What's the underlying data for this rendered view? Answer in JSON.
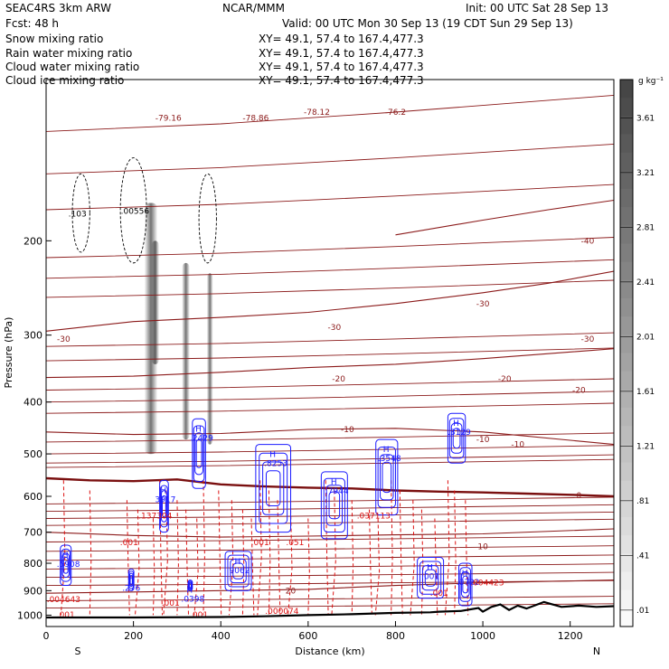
{
  "header": {
    "run": "SEAC4RS   3km ARW",
    "org": "NCAR/MMM",
    "init": "Init: 00 UTC Sat 28 Sep 13",
    "fcst": "Fcst:    48 h",
    "valid": "Valid: 00 UTC Mon 30 Sep 13 (19 CDT Sun 29 Sep 13)"
  },
  "fields": [
    {
      "name": "Snow mixing ratio",
      "xy": "XY=  49.1, 57.4 to 167.4,477.3",
      "color": "#000000"
    },
    {
      "name": "Rain water mixing ratio",
      "xy": "XY=  49.1, 57.4 to 167.4,477.3",
      "color": "#cc0000"
    },
    {
      "name": "Cloud water mixing ratio",
      "xy": "XY=  49.1, 57.4 to 167.4,477.3",
      "color": "#1a1aff"
    },
    {
      "name": "Cloud ice mixing ratio",
      "xy": "XY=  49.1, 57.4 to 167.4,477.3",
      "color": "#000000"
    }
  ],
  "colors": {
    "temperature": "#8b1a1a",
    "freezing_line": "#7a0f0f",
    "rain": "#dd1111",
    "cloud_water": "#1a1aff",
    "ice": "#000000",
    "terrain": "#000000"
  },
  "chart_data": {
    "type": "cross-section",
    "xlabel": "Distance (km)",
    "ylabel": "Pressure (hPa)",
    "xlim": [
      0,
      1300
    ],
    "ylim": [
      1050,
      100
    ],
    "y_scale": "log",
    "x_ticks": [
      0,
      200,
      400,
      600,
      800,
      1000,
      1200
    ],
    "y_ticks": [
      200,
      300,
      400,
      500,
      600,
      700,
      800,
      900,
      1000
    ],
    "end_labels": {
      "left": "S",
      "right": "N"
    },
    "colorbar": {
      "unit": "g kg⁻¹",
      "labels": [
        "3.61",
        "3.21",
        "2.81",
        "2.41",
        "2.01",
        "1.61",
        "1.21",
        ".81",
        ".41",
        ".01"
      ]
    },
    "temperature_contours": [
      {
        "value": "-40",
        "pts": [
          [
            800,
            195
          ],
          [
            1000,
            183
          ],
          [
            1150,
            175
          ],
          [
            1300,
            168
          ]
        ],
        "labels": [
          {
            "x": 1240,
            "p": 200,
            "t": "-40"
          }
        ]
      },
      {
        "value": "-30",
        "pts": [
          [
            0,
            295
          ],
          [
            200,
            283
          ],
          [
            400,
            278
          ],
          [
            600,
            272
          ],
          [
            800,
            262
          ],
          [
            1000,
            250
          ],
          [
            1150,
            240
          ],
          [
            1300,
            228
          ]
        ],
        "labels": [
          {
            "x": 40,
            "p": 305,
            "t": "-30"
          },
          {
            "x": 660,
            "p": 290,
            "t": "-30"
          },
          {
            "x": 1000,
            "p": 262,
            "t": "-30"
          },
          {
            "x": 1240,
            "p": 305,
            "t": "-30"
          }
        ]
      },
      {
        "value": "-20",
        "pts": [
          [
            0,
            360
          ],
          [
            200,
            358
          ],
          [
            400,
            352
          ],
          [
            600,
            345
          ],
          [
            800,
            340
          ],
          [
            1000,
            332
          ],
          [
            1300,
            318
          ]
        ],
        "labels": [
          {
            "x": 670,
            "p": 362,
            "t": "-20"
          },
          {
            "x": 1050,
            "p": 362,
            "t": "-20"
          },
          {
            "x": 1220,
            "p": 380,
            "t": "-20"
          }
        ]
      },
      {
        "value": "-10",
        "pts": [
          [
            0,
            455
          ],
          [
            200,
            460
          ],
          [
            400,
            458
          ],
          [
            600,
            450
          ],
          [
            800,
            448
          ],
          [
            1000,
            455
          ],
          [
            1300,
            480
          ]
        ],
        "labels": [
          {
            "x": 690,
            "p": 450,
            "t": "-10"
          },
          {
            "x": 1000,
            "p": 470,
            "t": "-10"
          },
          {
            "x": 1080,
            "p": 480,
            "t": "-10"
          }
        ]
      },
      {
        "value": "0",
        "pts": [
          [
            0,
            555
          ],
          [
            100,
            560
          ],
          [
            200,
            562
          ],
          [
            300,
            558
          ],
          [
            400,
            570
          ],
          [
            500,
            575
          ],
          [
            600,
            578
          ],
          [
            700,
            580
          ],
          [
            800,
            585
          ],
          [
            900,
            588
          ],
          [
            1000,
            590
          ],
          [
            1100,
            593
          ],
          [
            1200,
            596
          ],
          [
            1300,
            600
          ]
        ],
        "labels": [
          {
            "x": 1220,
            "p": 598,
            "t": "0"
          }
        ]
      },
      {
        "value": "10",
        "pts": [
          [
            0,
            700
          ],
          [
            200,
            710
          ],
          [
            400,
            715
          ],
          [
            600,
            712
          ],
          [
            800,
            708
          ],
          [
            1000,
            705
          ],
          [
            1300,
            690
          ]
        ],
        "labels": [
          {
            "x": 1000,
            "p": 745,
            "t": "10"
          }
        ]
      },
      {
        "value": "20",
        "pts": [
          [
            0,
            910
          ],
          [
            200,
            905
          ],
          [
            400,
            900
          ],
          [
            600,
            895
          ],
          [
            800,
            880
          ],
          [
            1000,
            870
          ],
          [
            1300,
            860
          ]
        ],
        "labels": [
          {
            "x": 560,
            "p": 900,
            "t": "20"
          }
        ]
      }
    ],
    "theta_lines_top": [
      {
        "value": "-79.16",
        "x": 280,
        "p": 118
      },
      {
        "value": "-78.86",
        "x": 480,
        "p": 118
      },
      {
        "value": "-78.12",
        "x": 620,
        "p": 115
      },
      {
        "value": "-76.2",
        "x": 800,
        "p": 115
      }
    ],
    "snow_shading": [
      {
        "x": 240,
        "p_top": 170,
        "p_bot": 500,
        "w": 30
      },
      {
        "x": 250,
        "p_top": 200,
        "p_bot": 340,
        "w": 18
      },
      {
        "x": 320,
        "p_top": 220,
        "p_bot": 470,
        "w": 18
      },
      {
        "x": 375,
        "p_top": 230,
        "p_bot": 480,
        "w": 14
      }
    ],
    "cloud_water_cells": [
      {
        "x": 45,
        "p1": 740,
        "p2": 880,
        "w": 25,
        "label": ".5908"
      },
      {
        "x": 195,
        "p1": 820,
        "p2": 900,
        "w": 12,
        "label": ".276"
      },
      {
        "x": 270,
        "p1": 560,
        "p2": 700,
        "w": 20,
        "label": "3917"
      },
      {
        "x": 350,
        "p1": 430,
        "p2": 580,
        "w": 30,
        "label": ".2429"
      },
      {
        "x": 440,
        "p1": 760,
        "p2": 900,
        "w": 60,
        "label": "9062"
      },
      {
        "x": 520,
        "p1": 480,
        "p2": 700,
        "w": 80,
        "label": ".8253"
      },
      {
        "x": 660,
        "p1": 540,
        "p2": 720,
        "w": 60,
        "label": ".7944"
      },
      {
        "x": 780,
        "p1": 470,
        "p2": 650,
        "w": 50,
        "label": ".3548"
      },
      {
        "x": 940,
        "p1": 420,
        "p2": 520,
        "w": 40,
        "label": ".3129"
      },
      {
        "x": 880,
        "p1": 780,
        "p2": 930,
        "w": 60,
        "label": ".001"
      },
      {
        "x": 960,
        "p1": 800,
        "p2": 960,
        "w": 30,
        "label": ".0722"
      },
      {
        "x": 330,
        "p1": 860,
        "p2": 900,
        "w": 10,
        "label": ".0398"
      }
    ],
    "rain_lines_x": [
      40,
      100,
      185,
      210,
      245,
      260,
      275,
      300,
      320,
      345,
      360,
      395,
      425,
      450,
      470,
      490,
      510,
      530,
      560,
      600,
      640,
      660,
      700,
      740,
      760,
      790,
      810,
      840,
      860,
      890,
      920,
      935,
      960
    ],
    "annotations_red": [
      {
        "x": 250,
        "p": 660,
        "t": ".137304"
      },
      {
        "x": 190,
        "p": 740,
        "t": ".001"
      },
      {
        "x": 285,
        "p": 960,
        "t": ".001"
      },
      {
        "x": 350,
        "p": 1010,
        "t": ".001"
      },
      {
        "x": 45,
        "p": 1010,
        "t": ".001"
      },
      {
        "x": 40,
        "p": 945,
        "t": ".004643"
      },
      {
        "x": 750,
        "p": 660,
        "t": ".037113"
      },
      {
        "x": 540,
        "p": 995,
        "t": ".000074"
      },
      {
        "x": 490,
        "p": 740,
        "t": ".001"
      },
      {
        "x": 570,
        "p": 740,
        "t": ".051"
      },
      {
        "x": 900,
        "p": 920,
        "t": ".001"
      },
      {
        "x": 1010,
        "p": 880,
        "t": ".004423"
      }
    ],
    "terrain": [
      [
        0,
        1010
      ],
      [
        200,
        1010
      ],
      [
        400,
        1008
      ],
      [
        500,
        1005
      ],
      [
        600,
        1000
      ],
      [
        700,
        996
      ],
      [
        800,
        990
      ],
      [
        880,
        988
      ],
      [
        900,
        985
      ],
      [
        950,
        982
      ],
      [
        990,
        970
      ],
      [
        1000,
        985
      ],
      [
        1020,
        965
      ],
      [
        1040,
        955
      ],
      [
        1060,
        978
      ],
      [
        1080,
        960
      ],
      [
        1100,
        972
      ],
      [
        1140,
        945
      ],
      [
        1180,
        965
      ],
      [
        1220,
        960
      ],
      [
        1260,
        965
      ],
      [
        1300,
        962
      ]
    ],
    "ice_cells": [
      {
        "x": 80,
        "p1": 150,
        "p2": 210,
        "w": 40,
        "label": ".103"
      },
      {
        "x": 200,
        "p1": 140,
        "p2": 220,
        "w": 60,
        "label": ".00556"
      },
      {
        "x": 370,
        "p1": 150,
        "p2": 220,
        "w": 40,
        "label": ""
      }
    ]
  }
}
